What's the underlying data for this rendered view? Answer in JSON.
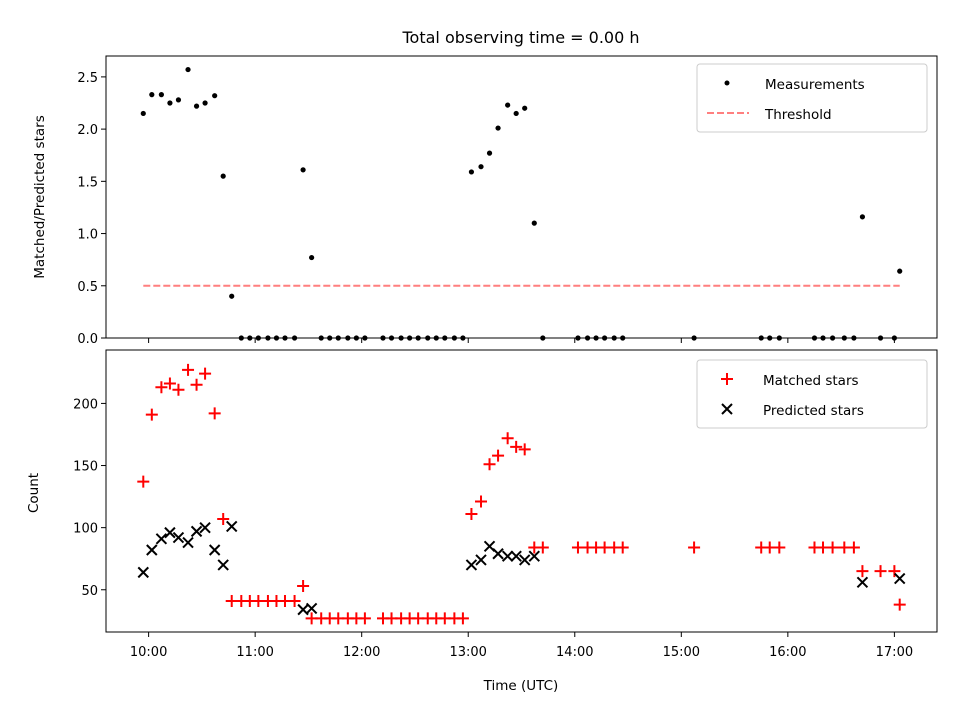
{
  "title": "Total observing time = 0.00 h",
  "colors": {
    "measurements": "#000000",
    "threshold": "#ff7f7f",
    "matched": "#ff0000",
    "predicted": "#000000"
  },
  "chart_data": [
    {
      "type": "scatter",
      "ylabel": "Matched/Predicted stars",
      "xlim": [
        9.6,
        17.4
      ],
      "ylim": [
        0,
        2.7
      ],
      "yticks": [
        "0.0",
        "0.5",
        "1.0",
        "1.5",
        "2.0",
        "2.5"
      ],
      "legend": {
        "placement": "top-right",
        "entries": [
          "Measurements",
          "Threshold"
        ]
      },
      "series": [
        {
          "name": "Measurements",
          "marker": "dot",
          "points": [
            [
              9.95,
              2.15
            ],
            [
              10.03,
              2.33
            ],
            [
              10.12,
              2.33
            ],
            [
              10.2,
              2.25
            ],
            [
              10.28,
              2.28
            ],
            [
              10.37,
              2.57
            ],
            [
              10.45,
              2.22
            ],
            [
              10.53,
              2.25
            ],
            [
              10.62,
              2.32
            ],
            [
              10.7,
              1.55
            ],
            [
              10.78,
              0.4
            ],
            [
              10.87,
              0
            ],
            [
              10.95,
              0
            ],
            [
              11.03,
              0
            ],
            [
              11.12,
              0
            ],
            [
              11.2,
              0
            ],
            [
              11.28,
              0
            ],
            [
              11.37,
              0
            ],
            [
              11.45,
              1.61
            ],
            [
              11.53,
              0.77
            ],
            [
              11.62,
              0
            ],
            [
              11.7,
              0
            ],
            [
              11.78,
              0
            ],
            [
              11.87,
              0
            ],
            [
              11.95,
              0
            ],
            [
              12.03,
              0
            ],
            [
              12.2,
              0
            ],
            [
              12.28,
              0
            ],
            [
              12.37,
              0
            ],
            [
              12.45,
              0
            ],
            [
              12.53,
              0
            ],
            [
              12.62,
              0
            ],
            [
              12.7,
              0
            ],
            [
              12.78,
              0
            ],
            [
              12.87,
              0
            ],
            [
              12.95,
              0
            ],
            [
              13.03,
              1.59
            ],
            [
              13.12,
              1.64
            ],
            [
              13.2,
              1.77
            ],
            [
              13.28,
              2.01
            ],
            [
              13.37,
              2.23
            ],
            [
              13.45,
              2.15
            ],
            [
              13.53,
              2.2
            ],
            [
              13.62,
              1.1
            ],
            [
              13.7,
              0
            ],
            [
              14.03,
              0
            ],
            [
              14.12,
              0
            ],
            [
              14.2,
              0
            ],
            [
              14.28,
              0
            ],
            [
              14.37,
              0
            ],
            [
              14.45,
              0
            ],
            [
              15.12,
              0
            ],
            [
              15.75,
              0
            ],
            [
              15.83,
              0
            ],
            [
              15.92,
              0
            ],
            [
              16.25,
              0
            ],
            [
              16.33,
              0
            ],
            [
              16.42,
              0
            ],
            [
              16.53,
              0
            ],
            [
              16.62,
              0
            ],
            [
              16.7,
              1.16
            ],
            [
              16.87,
              0
            ],
            [
              17.0,
              0
            ],
            [
              17.05,
              0.64
            ]
          ]
        },
        {
          "name": "Threshold",
          "style": "dashed",
          "points": [
            [
              9.95,
              0.5
            ],
            [
              17.05,
              0.5
            ]
          ]
        }
      ]
    },
    {
      "type": "scatter",
      "xlabel": "Time (UTC)",
      "ylabel": "Count",
      "xlim": [
        9.6,
        17.4
      ],
      "ylim": [
        16,
        243
      ],
      "xticks": [
        {
          "value": 10,
          "label": "10:00"
        },
        {
          "value": 11,
          "label": "11:00"
        },
        {
          "value": 12,
          "label": "12:00"
        },
        {
          "value": 13,
          "label": "13:00"
        },
        {
          "value": 14,
          "label": "14:00"
        },
        {
          "value": 15,
          "label": "15:00"
        },
        {
          "value": 16,
          "label": "16:00"
        },
        {
          "value": 17,
          "label": "17:00"
        }
      ],
      "yticks": [
        "50",
        "100",
        "150",
        "200"
      ],
      "legend": {
        "placement": "top-right",
        "entries": [
          "Matched stars",
          "Predicted stars"
        ]
      },
      "series": [
        {
          "name": "Matched stars",
          "marker": "plus",
          "points": [
            [
              9.95,
              137
            ],
            [
              10.03,
              191
            ],
            [
              10.12,
              213
            ],
            [
              10.2,
              216
            ],
            [
              10.28,
              211
            ],
            [
              10.37,
              227
            ],
            [
              10.45,
              215
            ],
            [
              10.53,
              224
            ],
            [
              10.62,
              192
            ],
            [
              10.7,
              107
            ],
            [
              10.78,
              41
            ],
            [
              10.87,
              41
            ],
            [
              10.95,
              41
            ],
            [
              11.03,
              41
            ],
            [
              11.12,
              41
            ],
            [
              11.2,
              41
            ],
            [
              11.28,
              41
            ],
            [
              11.37,
              41
            ],
            [
              11.45,
              53
            ],
            [
              11.53,
              27
            ],
            [
              11.62,
              27
            ],
            [
              11.7,
              27
            ],
            [
              11.78,
              27
            ],
            [
              11.87,
              27
            ],
            [
              11.95,
              27
            ],
            [
              12.03,
              27
            ],
            [
              12.2,
              27
            ],
            [
              12.28,
              27
            ],
            [
              12.37,
              27
            ],
            [
              12.45,
              27
            ],
            [
              12.53,
              27
            ],
            [
              12.62,
              27
            ],
            [
              12.7,
              27
            ],
            [
              12.78,
              27
            ],
            [
              12.87,
              27
            ],
            [
              12.95,
              27
            ],
            [
              13.03,
              111
            ],
            [
              13.12,
              121
            ],
            [
              13.2,
              151
            ],
            [
              13.28,
              158
            ],
            [
              13.37,
              172
            ],
            [
              13.45,
              165
            ],
            [
              13.53,
              163
            ],
            [
              13.62,
              84
            ],
            [
              13.7,
              84
            ],
            [
              14.03,
              84
            ],
            [
              14.12,
              84
            ],
            [
              14.2,
              84
            ],
            [
              14.28,
              84
            ],
            [
              14.37,
              84
            ],
            [
              14.45,
              84
            ],
            [
              15.12,
              84
            ],
            [
              15.75,
              84
            ],
            [
              15.83,
              84
            ],
            [
              15.92,
              84
            ],
            [
              16.25,
              84
            ],
            [
              16.33,
              84
            ],
            [
              16.42,
              84
            ],
            [
              16.53,
              84
            ],
            [
              16.62,
              84
            ],
            [
              16.7,
              65
            ],
            [
              16.87,
              65
            ],
            [
              17.0,
              65
            ],
            [
              17.05,
              38
            ]
          ]
        },
        {
          "name": "Predicted stars",
          "marker": "x",
          "points": [
            [
              9.95,
              64
            ],
            [
              10.03,
              82
            ],
            [
              10.12,
              91
            ],
            [
              10.2,
              96
            ],
            [
              10.28,
              92
            ],
            [
              10.37,
              88
            ],
            [
              10.45,
              97
            ],
            [
              10.53,
              100
            ],
            [
              10.62,
              82
            ],
            [
              10.7,
              70
            ],
            [
              10.78,
              101
            ],
            [
              11.45,
              34
            ],
            [
              11.53,
              35
            ],
            [
              13.03,
              70
            ],
            [
              13.12,
              74
            ],
            [
              13.2,
              85
            ],
            [
              13.28,
              79
            ],
            [
              13.37,
              77
            ],
            [
              13.45,
              77
            ],
            [
              13.53,
              74
            ],
            [
              13.62,
              77
            ],
            [
              16.7,
              56
            ],
            [
              17.05,
              59
            ]
          ]
        }
      ]
    }
  ]
}
